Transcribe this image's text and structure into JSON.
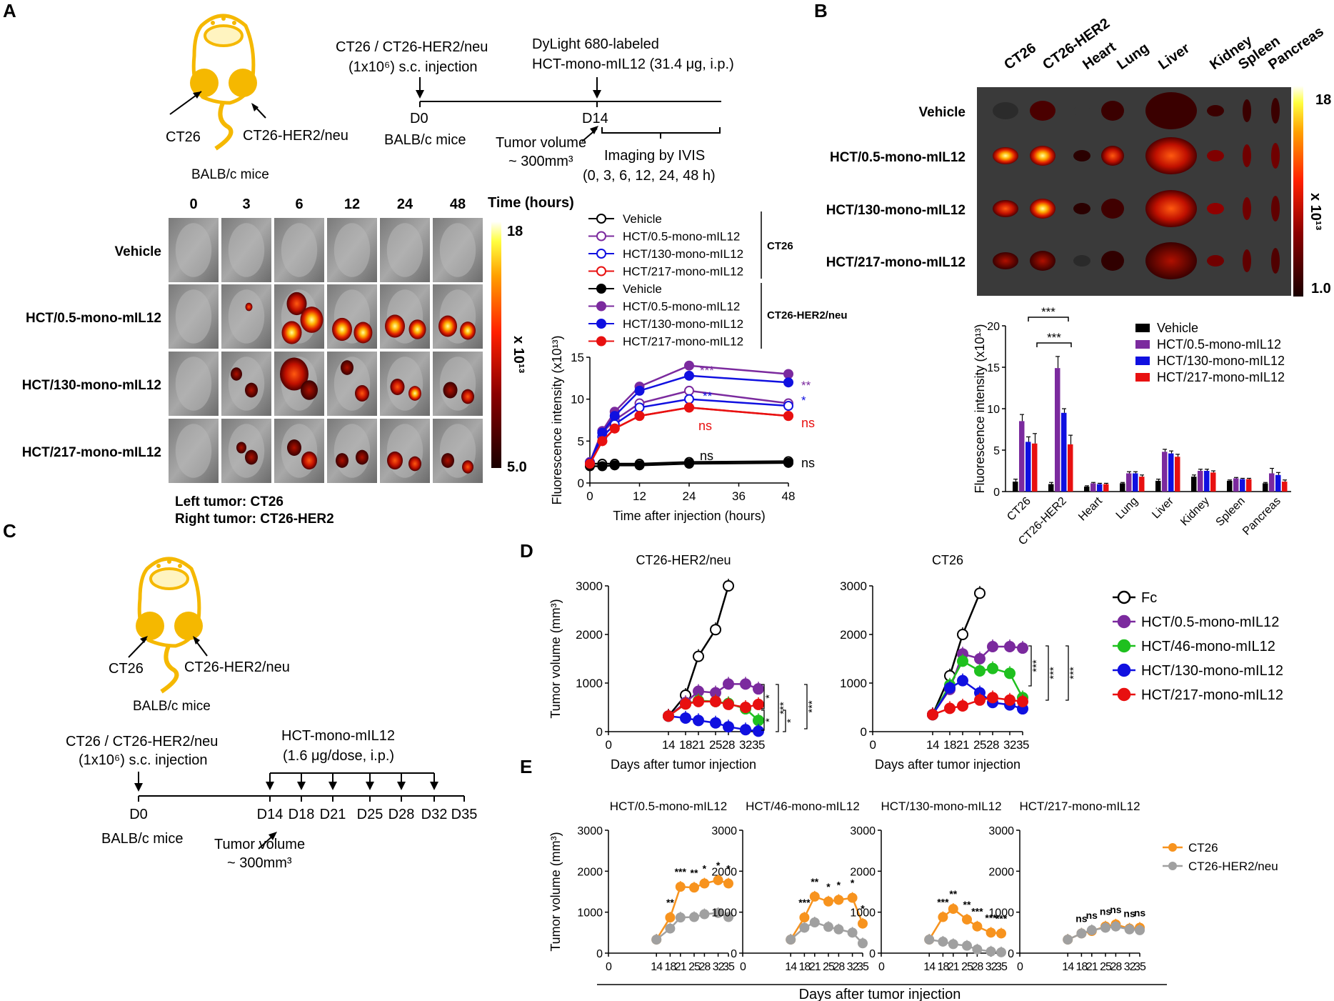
{
  "colors": {
    "mouse": "#F5B800",
    "mouse_light": "#FFF4C0",
    "vehicle": "#000000",
    "hct05": "#7B2A9E",
    "hct46": "#1FC01F",
    "hct130": "#1010E0",
    "hct217": "#E81010",
    "orange": "#F7931E",
    "gray": "#A0A0A0",
    "purple": "#7B2A9E",
    "blue": "#1010E0",
    "red": "#E81010"
  },
  "panel_a": {
    "label": "A",
    "mouse_labels": {
      "left": "CT26",
      "right": "CT26-HER2/neu",
      "strain": "BALB/c mice"
    },
    "timeline": {
      "injection_line1": "CT26 / CT26-HER2/neu",
      "injection_line2": "(1x10⁶) s.c. injection",
      "dye_line1": "DyLight 680-labeled",
      "dye_line2": "HCT-mono-mIL12 (31.4 μg, i.p.)",
      "d0": "D0",
      "d14": "D14",
      "strain": "BALB/c mice",
      "tumor_line1": "Tumor volume",
      "tumor_line2": "~ 300mm³",
      "imaging_line1": "Imaging by IVIS",
      "imaging_line2": "(0, 3, 6, 12, 24, 48 h)"
    },
    "time_headers": [
      "0",
      "3",
      "6",
      "12",
      "24",
      "48"
    ],
    "time_unit": "Time (hours)",
    "row_labels": [
      "Vehicle",
      "HCT/0.5-mono-mIL12",
      "HCT/130-mono-mIL12",
      "HCT/217-mono-mIL12"
    ],
    "colorbar": {
      "max": "18",
      "min": "5.0",
      "unit": "x 10¹³"
    },
    "footnote_left": "Left tumor: CT26",
    "footnote_right": "Right tumor: CT26-HER2",
    "legend": {
      "ct26_group": "CT26",
      "her2_group": "CT26-HER2/neu",
      "items": [
        "Vehicle",
        "HCT/0.5-mono-mIL12",
        "HCT/130-mono-mIL12",
        "HCT/217-mono-mIL12",
        "Vehicle",
        "HCT/0.5-mono-mIL12",
        "HCT/130-mono-mIL12",
        "HCT/217-mono-mIL12"
      ]
    },
    "significance": {
      "purple": "***",
      "purple_end": "**",
      "blue": "**",
      "blue_end": "*",
      "red": "ns",
      "red_end": "ns",
      "vehicle": "ns",
      "vehicle_end": "ns"
    }
  },
  "panel_b": {
    "label": "B",
    "organ_headers": [
      "CT26",
      "CT26-HER2",
      "Heart",
      "Lung",
      "Liver",
      "Kidney",
      "Spleen",
      "Pancreas"
    ],
    "row_labels": [
      "Vehicle",
      "HCT/0.5-mono-mIL12",
      "HCT/130-mono-mIL12",
      "HCT/217-mono-mIL12"
    ],
    "colorbar": {
      "max": "18",
      "min": "1.0",
      "unit": "x 10¹³"
    },
    "legend": [
      "Vehicle",
      "HCT/0.5-mono-mIL12",
      "HCT/130-mono-mIL12",
      "HCT/217-mono-mIL12"
    ],
    "significance": [
      "***",
      "***"
    ]
  },
  "panel_c": {
    "label": "C",
    "mouse_labels": {
      "left": "CT26",
      "right": "CT26-HER2/neu",
      "strain": "BALB/c mice"
    },
    "timeline": {
      "injection_line1": "CT26 / CT26-HER2/neu",
      "injection_line2": "(1x10⁶) s.c. injection",
      "drug_line1": "HCT-mono-mIL12",
      "drug_line2": "(1.6 μg/dose, i.p.)",
      "days": [
        "D0",
        "D14",
        "D18",
        "D21",
        "D25",
        "D28",
        "D32",
        "D35"
      ],
      "strain": "BALB/c mice",
      "tumor_line1": "Tumor volume",
      "tumor_line2": "~ 300mm³"
    }
  },
  "panel_d": {
    "label": "D",
    "legend": [
      "Fc",
      "HCT/0.5-mono-mIL12",
      "HCT/46-mono-mIL12",
      "HCT/130-mono-mIL12",
      "HCT/217-mono-mIL12"
    ],
    "left_sig": [
      "*",
      "***",
      "***",
      "*",
      "*"
    ],
    "right_sig": [
      "***",
      "***",
      "***"
    ]
  },
  "panel_e": {
    "label": "E",
    "legend": [
      "CT26",
      "CT26-HER2/neu"
    ],
    "xlabel": "Days after tumor injection"
  },
  "chart_data": [
    {
      "type": "line",
      "title": "",
      "xlabel": "Time after injection (hours)",
      "ylabel": "Fluorescence intensity (x10¹³)",
      "xlim": [
        0,
        48
      ],
      "ylim": [
        0,
        15
      ],
      "xticks": [
        "0",
        "12",
        "24",
        "36",
        "48"
      ],
      "yticks": [
        "0",
        "5",
        "10",
        "15"
      ],
      "x": [
        0,
        3,
        6,
        12,
        24,
        48
      ],
      "series": [
        {
          "name": "Vehicle (CT26)",
          "values": [
            2.3,
            2.3,
            2.3,
            2.3,
            2.5,
            2.6
          ],
          "color": "vehicle",
          "filled": false
        },
        {
          "name": "HCT/0.5-mono-mIL12 (CT26)",
          "values": [
            2.4,
            6.0,
            7.5,
            9.5,
            11.0,
            9.5
          ],
          "color": "hct05",
          "filled": false
        },
        {
          "name": "HCT/130-mono-mIL12 (CT26)",
          "values": [
            2.4,
            5.5,
            7.0,
            9.0,
            10.0,
            9.2
          ],
          "color": "hct130",
          "filled": false
        },
        {
          "name": "HCT/217-mono-mIL12 (CT26)",
          "values": [
            2.3,
            5.0,
            6.5,
            8.0,
            9.0,
            8.0
          ],
          "color": "hct217",
          "filled": true
        },
        {
          "name": "Vehicle (CT26-HER2/neu)",
          "values": [
            2.0,
            2.0,
            2.1,
            2.1,
            2.3,
            2.4
          ],
          "color": "vehicle",
          "filled": true
        },
        {
          "name": "HCT/0.5-mono-mIL12 (CT26-HER2/neu)",
          "values": [
            2.5,
            6.2,
            8.5,
            11.5,
            14.0,
            13.0
          ],
          "color": "hct05",
          "filled": true
        },
        {
          "name": "HCT/130-mono-mIL12 (CT26-HER2/neu)",
          "values": [
            2.4,
            6.0,
            8.0,
            11.0,
            12.8,
            12.0
          ],
          "color": "hct130",
          "filled": true
        },
        {
          "name": "HCT/217-mono-mIL12 (CT26-HER2/neu)",
          "values": [
            2.3,
            5.0,
            6.5,
            8.0,
            9.0,
            8.0
          ],
          "color": "hct217",
          "filled": true
        }
      ]
    },
    {
      "type": "bar",
      "title": "",
      "xlabel": "",
      "ylabel": "Fluorescence intensity (x10¹³)",
      "ylim": [
        0,
        20
      ],
      "yticks": [
        "0",
        "5",
        "10",
        "15",
        "20"
      ],
      "categories": [
        "CT26",
        "CT26-HER2",
        "Heart",
        "Lung",
        "Liver",
        "Kidney",
        "Spleen",
        "Pancreas"
      ],
      "series": [
        {
          "name": "Vehicle",
          "values": [
            1.2,
            0.9,
            0.6,
            1.0,
            1.3,
            1.8,
            1.3,
            1.0
          ],
          "errors": [
            0.3,
            0.2,
            0.1,
            0.1,
            0.2,
            0.2,
            0.1,
            0.1
          ],
          "color": "vehicle"
        },
        {
          "name": "HCT/0.5-mono-mIL12",
          "values": [
            8.5,
            14.9,
            1.0,
            2.2,
            4.8,
            2.5,
            1.6,
            2.2
          ],
          "errors": [
            0.8,
            1.4,
            0.1,
            0.2,
            0.3,
            0.2,
            0.1,
            0.6
          ],
          "color": "hct05"
        },
        {
          "name": "HCT/130-mono-mIL12",
          "values": [
            6.0,
            9.5,
            0.9,
            2.2,
            4.6,
            2.5,
            1.5,
            2.0
          ],
          "errors": [
            0.6,
            0.5,
            0.1,
            0.2,
            0.3,
            0.2,
            0.1,
            0.3
          ],
          "color": "hct130"
        },
        {
          "name": "HCT/217-mono-mIL12",
          "values": [
            5.8,
            5.7,
            0.9,
            1.8,
            4.2,
            2.3,
            1.5,
            1.2
          ],
          "errors": [
            1.2,
            1.1,
            0.1,
            0.2,
            0.3,
            0.2,
            0.1,
            0.2
          ],
          "color": "hct217"
        }
      ]
    },
    {
      "type": "line",
      "title": "CT26-HER2/neu",
      "xlabel": "Days after tumor injection",
      "ylabel": "Tumor volume (mm³)",
      "xlim": [
        0,
        35
      ],
      "ylim": [
        0,
        3000
      ],
      "xticks": [
        "0",
        "14",
        "18",
        "21",
        "25",
        "28",
        "32",
        "35"
      ],
      "yticks": [
        "0",
        "1000",
        "2000",
        "3000"
      ],
      "series": [
        {
          "name": "Fc",
          "x": [
            14,
            18,
            21,
            25,
            28
          ],
          "values": [
            320,
            750,
            1550,
            2100,
            3000
          ],
          "color": "vehicle",
          "filled": false
        },
        {
          "name": "HCT/0.5-mono-mIL12",
          "x": [
            14,
            18,
            21,
            25,
            28,
            32,
            35
          ],
          "values": [
            320,
            600,
            830,
            800,
            980,
            980,
            880
          ],
          "color": "hct05",
          "filled": true
        },
        {
          "name": "HCT/46-mono-mIL12",
          "x": [
            14,
            18,
            21,
            25,
            28,
            32,
            35
          ],
          "values": [
            320,
            570,
            640,
            620,
            580,
            470,
            230
          ],
          "color": "hct46",
          "filled": true
        },
        {
          "name": "HCT/130-mono-mIL12",
          "x": [
            14,
            18,
            21,
            25,
            28,
            32,
            35
          ],
          "values": [
            320,
            280,
            230,
            180,
            100,
            40,
            10
          ],
          "color": "hct130",
          "filled": true
        },
        {
          "name": "HCT/217-mono-mIL12",
          "x": [
            14,
            18,
            21,
            25,
            28,
            32,
            35
          ],
          "values": [
            320,
            570,
            620,
            620,
            560,
            500,
            560
          ],
          "color": "hct217",
          "filled": true
        }
      ]
    },
    {
      "type": "line",
      "title": "CT26",
      "xlabel": "Days after tumor injection",
      "ylabel": "",
      "xlim": [
        0,
        35
      ],
      "ylim": [
        0,
        3000
      ],
      "xticks": [
        "0",
        "14",
        "18",
        "21",
        "25",
        "28",
        "32",
        "35"
      ],
      "yticks": [
        "0",
        "1000",
        "2000",
        "3000"
      ],
      "series": [
        {
          "name": "Fc",
          "x": [
            14,
            18,
            21,
            25
          ],
          "values": [
            350,
            1150,
            2000,
            2850
          ],
          "color": "vehicle",
          "filled": false
        },
        {
          "name": "HCT/0.5-mono-mIL12",
          "x": [
            14,
            18,
            21,
            25,
            28,
            32,
            35
          ],
          "values": [
            350,
            870,
            1600,
            1500,
            1750,
            1750,
            1720
          ],
          "color": "hct05",
          "filled": true
        },
        {
          "name": "HCT/46-mono-mIL12",
          "x": [
            14,
            18,
            21,
            25,
            28,
            32,
            35
          ],
          "values": [
            350,
            960,
            1450,
            1250,
            1300,
            1200,
            700
          ],
          "color": "hct46",
          "filled": true
        },
        {
          "name": "HCT/130-mono-mIL12",
          "x": [
            14,
            18,
            21,
            25,
            28,
            32,
            35
          ],
          "values": [
            350,
            900,
            1050,
            800,
            600,
            550,
            470
          ],
          "color": "hct130",
          "filled": true
        },
        {
          "name": "HCT/217-mono-mIL12",
          "x": [
            14,
            18,
            21,
            25,
            28,
            32,
            35
          ],
          "values": [
            350,
            480,
            530,
            650,
            700,
            650,
            620
          ],
          "color": "hct217",
          "filled": true
        }
      ]
    },
    {
      "type": "line",
      "title": "HCT/0.5-mono-mIL12",
      "xlabel": "",
      "ylabel": "Tumor volume (mm³)",
      "xlim": [
        0,
        35
      ],
      "ylim": [
        0,
        3000
      ],
      "xticks": [
        "0",
        "14",
        "18",
        "21",
        "25",
        "28",
        "32",
        "35"
      ],
      "yticks": [
        "0",
        "1000",
        "2000",
        "3000"
      ],
      "x": [
        14,
        18,
        21,
        25,
        28,
        32,
        35
      ],
      "series": [
        {
          "name": "CT26",
          "values": [
            330,
            870,
            1620,
            1600,
            1700,
            1780,
            1700
          ],
          "color": "orange"
        },
        {
          "name": "CT26-HER2/neu",
          "values": [
            330,
            600,
            870,
            880,
            950,
            980,
            880
          ],
          "color": "gray"
        }
      ],
      "annotations": [
        "**",
        "***",
        "**",
        "*",
        "*",
        "*"
      ]
    },
    {
      "type": "line",
      "title": "HCT/46-mono-mIL12",
      "xlabel": "",
      "ylabel": "",
      "xlim": [
        0,
        35
      ],
      "ylim": [
        0,
        3000
      ],
      "xticks": [
        "0",
        "14",
        "18",
        "21",
        "25",
        "28",
        "32",
        "35"
      ],
      "yticks": [
        "0",
        "1000",
        "2000",
        "3000"
      ],
      "x": [
        14,
        18,
        21,
        25,
        28,
        32,
        35
      ],
      "series": [
        {
          "name": "CT26",
          "values": [
            330,
            870,
            1380,
            1260,
            1300,
            1350,
            720
          ],
          "color": "orange"
        },
        {
          "name": "CT26-HER2/neu",
          "values": [
            330,
            620,
            750,
            640,
            580,
            500,
            240
          ],
          "color": "gray"
        }
      ],
      "annotations": [
        "***",
        "**",
        "*",
        "*",
        "*",
        "*"
      ]
    },
    {
      "type": "line",
      "title": "HCT/130-mono-mIL12",
      "xlabel": "",
      "ylabel": "",
      "xlim": [
        0,
        35
      ],
      "ylim": [
        0,
        3000
      ],
      "xticks": [
        "0",
        "14",
        "18",
        "21",
        "25",
        "28",
        "32",
        "35"
      ],
      "yticks": [
        "0",
        "1000",
        "2000",
        "3000"
      ],
      "x": [
        14,
        18,
        21,
        25,
        28,
        32,
        35
      ],
      "series": [
        {
          "name": "CT26",
          "values": [
            330,
            880,
            1080,
            820,
            650,
            500,
            480
          ],
          "color": "orange"
        },
        {
          "name": "CT26-HER2/neu",
          "values": [
            330,
            280,
            220,
            180,
            90,
            40,
            20
          ],
          "color": "gray"
        }
      ],
      "annotations": [
        "***",
        "**",
        "**",
        "***",
        "***",
        "***"
      ]
    },
    {
      "type": "line",
      "title": "HCT/217-mono-mIL12",
      "xlabel": "",
      "ylabel": "",
      "xlim": [
        0,
        35
      ],
      "ylim": [
        0,
        3000
      ],
      "xticks": [
        "0",
        "14",
        "18",
        "21",
        "25",
        "28",
        "32",
        "35"
      ],
      "yticks": [
        "0",
        "1000",
        "2000",
        "3000"
      ],
      "x": [
        14,
        18,
        21,
        25,
        28,
        32,
        35
      ],
      "series": [
        {
          "name": "CT26",
          "values": [
            330,
            480,
            540,
            650,
            700,
            600,
            620
          ],
          "color": "orange"
        },
        {
          "name": "CT26-HER2/neu",
          "values": [
            330,
            480,
            560,
            620,
            650,
            580,
            560
          ],
          "color": "gray"
        }
      ],
      "annotations": [
        "ns",
        "ns",
        "ns",
        "ns",
        "ns",
        "ns"
      ]
    }
  ]
}
